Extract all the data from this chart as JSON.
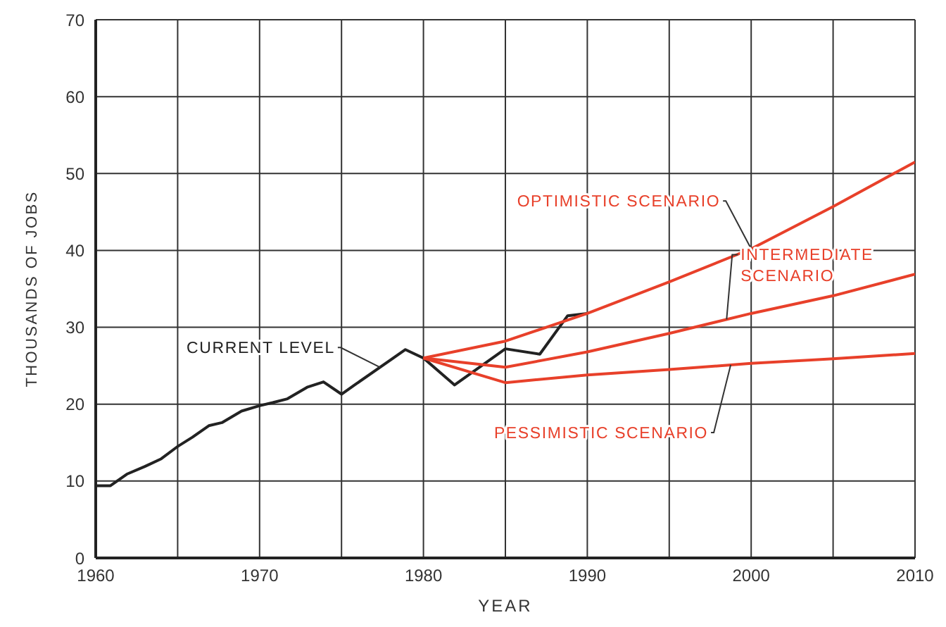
{
  "chart_data": {
    "type": "line",
    "xlabel": "YEAR",
    "ylabel": "THOUSANDS OF JOBS",
    "xlim": [
      1960,
      2010
    ],
    "xticks": [
      1960,
      {
        "value": 1965,
        "label": null
      },
      1970,
      {
        "value": 1975,
        "label": null
      },
      1980,
      {
        "value": 1985,
        "label": null
      },
      1990,
      {
        "value": 1995,
        "label": null
      },
      2000,
      {
        "value": 2005,
        "label": null
      },
      2010
    ],
    "ylim": [
      0,
      70
    ],
    "yticks": [
      0,
      10,
      20,
      30,
      40,
      50,
      60,
      70
    ],
    "grid": true,
    "legend": false,
    "marker": "none",
    "line_style": "solid",
    "series": [
      {
        "name": "CURRENT LEVEL",
        "color": "#222222",
        "x": [
          1960,
          1960.9,
          1961.9,
          1963,
          1964,
          1965,
          1965.9,
          1966.9,
          1967.7,
          1968.9,
          1970,
          1970.8,
          1971.7,
          1972.9,
          1973.9,
          1975,
          1975.8,
          1978.9,
          1980,
          1981.9,
          1985,
          1987.1,
          1988.8,
          1990
        ],
        "values": [
          9.4,
          9.4,
          10.9,
          11.9,
          12.9,
          14.5,
          15.7,
          17.2,
          17.6,
          19.1,
          19.8,
          20.2,
          20.7,
          22.2,
          22.9,
          21.3,
          22.5,
          27.1,
          26,
          22.5,
          27.2,
          26.5,
          31.5,
          31.8
        ]
      },
      {
        "name": "OPTIMISTIC SCENARIO",
        "color": "#e8402a",
        "x": [
          1980,
          1985,
          1990,
          1995,
          2000,
          2005,
          2010
        ],
        "values": [
          26,
          28.2,
          31.8,
          35.9,
          40.2,
          45.7,
          51.5
        ]
      },
      {
        "name": "INTERMEDIATE SCENARIO",
        "color": "#e8402a",
        "x": [
          1980,
          1985,
          1990,
          1995,
          2000,
          2005,
          2010
        ],
        "values": [
          26,
          24.8,
          26.8,
          29.2,
          31.8,
          34.1,
          36.9
        ]
      },
      {
        "name": "PESSIMISTIC SCENARIO",
        "color": "#e8402a",
        "x": [
          1980,
          1985,
          1990,
          1995,
          2000,
          2005,
          2010
        ],
        "values": [
          26,
          22.8,
          23.8,
          24.5,
          25.3,
          25.9,
          26.6
        ]
      }
    ]
  }
}
